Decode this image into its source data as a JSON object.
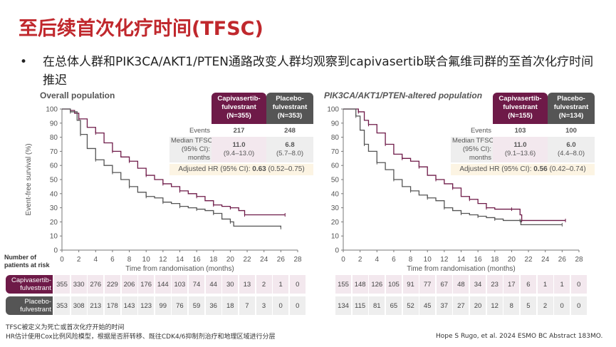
{
  "title": "至后续首次化疗时间(TFSC)",
  "bullet": "在总体人群和PIK3CA/AKT1/PTEN通路改变人群均观察到capivasertib联合氟维司群的至首次化疗时间推迟",
  "colors": {
    "capi": "#6e1a48",
    "placebo": "#555555",
    "title": "#c0282d"
  },
  "risk_label": [
    "Number of",
    "patients at risk"
  ],
  "arm_labels": {
    "capi": [
      "Capivasertib-",
      "fulvestrant"
    ],
    "placebo": [
      "Placebo-",
      "fulvestrant"
    ]
  },
  "stats_labels": {
    "events": "Events",
    "median": [
      "Median TFSC",
      "(95% CI):",
      "months"
    ]
  },
  "chart_data": [
    {
      "type": "line",
      "title": "Overall population",
      "xlabel": "Time from randomisation (months)",
      "ylabel": "Event-free survival (%)",
      "xlim": [
        0,
        28
      ],
      "ylim": [
        0,
        100
      ],
      "xticks": [
        "0",
        "2",
        "4",
        "6",
        "8",
        "10",
        "12",
        "14",
        "16",
        "18",
        "20",
        "22",
        "24",
        "26",
        "28"
      ],
      "yticks": [
        "0",
        "10",
        "20",
        "30",
        "40",
        "50",
        "60",
        "70",
        "80",
        "90",
        "100"
      ],
      "stats": {
        "capi_n": "(N=355)",
        "placebo_n": "(N=353)",
        "capi_events": "217",
        "placebo_events": "248",
        "capi_median": "11.0",
        "capi_ci": "(9.4–13.0)",
        "placebo_median": "6.8",
        "placebo_ci": "(5.7–8.0)",
        "hr_label": "Adjusted HR (95% CI): ",
        "hr": "0.63",
        "hr_ci": " (0.52–0.75)"
      },
      "series": [
        {
          "name": "Capivasertib-fulvestrant",
          "points": [
            [
              0,
              100
            ],
            [
              1,
              99
            ],
            [
              1.5,
              97
            ],
            [
              2,
              93
            ],
            [
              3,
              87
            ],
            [
              4,
              83
            ],
            [
              5,
              76
            ],
            [
              6,
              70
            ],
            [
              7,
              66
            ],
            [
              8,
              63
            ],
            [
              9,
              58
            ],
            [
              10,
              53
            ],
            [
              11,
              50
            ],
            [
              12,
              47
            ],
            [
              13,
              45
            ],
            [
              14,
              42
            ],
            [
              15,
              40
            ],
            [
              16,
              38
            ],
            [
              17,
              35
            ],
            [
              18,
              32
            ],
            [
              19,
              31
            ],
            [
              20,
              30
            ],
            [
              21,
              28
            ],
            [
              21.7,
              25
            ],
            [
              26.5,
              25
            ]
          ]
        },
        {
          "name": "Placebo-fulvestrant",
          "points": [
            [
              0,
              100
            ],
            [
              1,
              98
            ],
            [
              1.8,
              92
            ],
            [
              2.2,
              82
            ],
            [
              3,
              72
            ],
            [
              4,
              64
            ],
            [
              5,
              60
            ],
            [
              6,
              55
            ],
            [
              7,
              50
            ],
            [
              8,
              45
            ],
            [
              9,
              41
            ],
            [
              10,
              38
            ],
            [
              11,
              37
            ],
            [
              12,
              34
            ],
            [
              13,
              33
            ],
            [
              14,
              31
            ],
            [
              15,
              30
            ],
            [
              16,
              29
            ],
            [
              17,
              28
            ],
            [
              18,
              26
            ],
            [
              19,
              22
            ],
            [
              20,
              20
            ],
            [
              20.4,
              17
            ],
            [
              26,
              16
            ]
          ]
        }
      ],
      "at_risk": {
        "capi": [
          "355",
          "330",
          "276",
          "229",
          "206",
          "176",
          "144",
          "103",
          "74",
          "44",
          "30",
          "13",
          "2",
          "1",
          "0"
        ],
        "placebo": [
          "353",
          "308",
          "213",
          "178",
          "143",
          "123",
          "99",
          "76",
          "59",
          "36",
          "18",
          "7",
          "3",
          "0",
          "0"
        ]
      }
    },
    {
      "type": "line",
      "title": "PIK3CA/AKT1/PTEN-altered population",
      "xlabel": "Time from randomisation (months)",
      "ylabel": "",
      "xlim": [
        0,
        28
      ],
      "ylim": [
        0,
        100
      ],
      "xticks": [
        "0",
        "2",
        "4",
        "6",
        "8",
        "10",
        "12",
        "14",
        "16",
        "18",
        "20",
        "22",
        "24",
        "26",
        "28"
      ],
      "yticks": [
        "0",
        "10",
        "20",
        "30",
        "40",
        "50",
        "60",
        "70",
        "80",
        "90",
        "100"
      ],
      "stats": {
        "capi_n": "(N=155)",
        "placebo_n": "(N=134)",
        "capi_events": "103",
        "placebo_events": "100",
        "capi_median": "11.0",
        "capi_ci": "(9.1–13.6)",
        "placebo_median": "6.0",
        "placebo_ci": "(4.4–8.0)",
        "hr_label": "Adjusted HR (95% CI): ",
        "hr": "0.56",
        "hr_ci": " (0.42–0.74)"
      },
      "series": [
        {
          "name": "Capivasertib-fulvestrant",
          "points": [
            [
              0,
              100
            ],
            [
              1.8,
              98
            ],
            [
              2.5,
              92
            ],
            [
              3,
              89
            ],
            [
              4,
              83
            ],
            [
              5,
              75
            ],
            [
              6,
              68
            ],
            [
              7,
              65
            ],
            [
              8,
              63
            ],
            [
              9,
              59
            ],
            [
              10,
              53
            ],
            [
              11,
              50
            ],
            [
              12,
              47
            ],
            [
              13,
              44
            ],
            [
              14,
              38
            ],
            [
              15,
              36
            ],
            [
              16,
              33
            ],
            [
              17,
              30
            ],
            [
              18,
              29
            ],
            [
              20,
              29
            ],
            [
              21,
              25
            ],
            [
              21.2,
              21
            ],
            [
              26.4,
              21
            ]
          ]
        },
        {
          "name": "Placebo-fulvestrant",
          "points": [
            [
              0,
              100
            ],
            [
              1.5,
              95
            ],
            [
              2,
              85
            ],
            [
              2.5,
              75
            ],
            [
              3,
              70
            ],
            [
              4,
              62
            ],
            [
              5,
              57
            ],
            [
              6,
              50
            ],
            [
              7,
              45
            ],
            [
              8,
              42
            ],
            [
              9,
              39
            ],
            [
              10,
              37
            ],
            [
              11,
              35
            ],
            [
              12,
              30
            ],
            [
              13,
              28
            ],
            [
              14,
              26
            ],
            [
              15,
              25
            ],
            [
              16,
              24
            ],
            [
              17,
              23
            ],
            [
              18,
              22
            ],
            [
              19,
              21
            ],
            [
              21,
              21
            ],
            [
              21.1,
              18
            ],
            [
              26,
              18
            ]
          ]
        }
      ],
      "at_risk": {
        "capi": [
          "155",
          "148",
          "126",
          "105",
          "91",
          "77",
          "67",
          "48",
          "34",
          "23",
          "17",
          "6",
          "1",
          "1",
          "0"
        ],
        "placebo": [
          "134",
          "115",
          "81",
          "65",
          "52",
          "45",
          "37",
          "27",
          "20",
          "12",
          "8",
          "5",
          "2",
          "0",
          "0"
        ]
      }
    }
  ],
  "footnotes": [
    "TFSC被定义为死亡或首次化疗开始的时间",
    "HR估计使用Cox比例风险模型，根据是否肝转移、既往CDK4/6抑制剂治疗和地理区域进行分层"
  ],
  "citation": "Hope S Rugo, et al. 2024 ESMO BC Abstract 183MO."
}
